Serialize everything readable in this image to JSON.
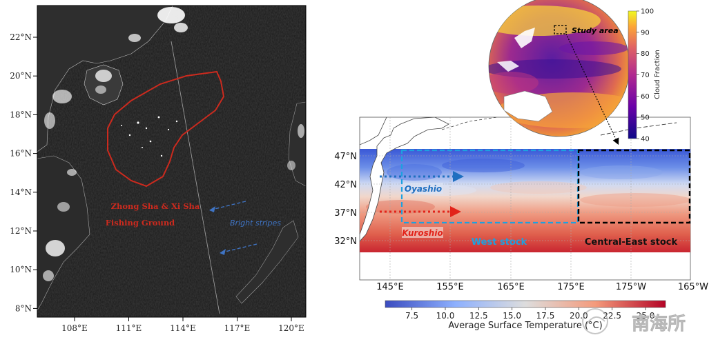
{
  "left_panel": {
    "lat_labels": [
      "22°N",
      "20°N",
      "18°N",
      "16°N",
      "14°N",
      "12°N",
      "10°N",
      "8°N"
    ],
    "lon_labels": [
      "108°E",
      "111°E",
      "114°E",
      "117°E",
      "120°E"
    ],
    "fishing_label_line1": "Zhong Sha & Xi Sha",
    "fishing_label_line2": "Fishing Ground",
    "bright_stripes_label": "Bright stripes",
    "colors": {
      "fishing": "#cc2a1e",
      "stripes": "#3f74c4"
    }
  },
  "right_panel": {
    "lat_labels": [
      "47°N",
      "42°N",
      "37°N",
      "32°N"
    ],
    "lon_labels": [
      "145°E",
      "155°E",
      "165°E",
      "175°E",
      "175°W",
      "165°W"
    ],
    "oyashio_label": "Oyashio",
    "kuroshio_label": "Kuroshio",
    "west_stock_label": "West stock",
    "central_east_label": "Central-East stock",
    "study_area_label": "Study area",
    "globe_colorbar": {
      "title": "Cloud Fraction",
      "ticks": [
        "100",
        "90",
        "80",
        "70",
        "60",
        "50",
        "40"
      ],
      "range": [
        40,
        100
      ]
    },
    "sst_colorbar": {
      "title": "Average Surface Temperature (°C)",
      "ticks": [
        "7.5",
        "10.0",
        "12.5",
        "15.0",
        "17.5",
        "20.0",
        "22.5",
        "25.0"
      ],
      "range": [
        5.5,
        26.5
      ]
    },
    "colors": {
      "oyashio": "#1f6fc0",
      "kuroshio": "#e2231a",
      "west_box": "#1ca1e0",
      "east_box": "#000000"
    }
  },
  "watermark": {
    "text": "南海所"
  }
}
